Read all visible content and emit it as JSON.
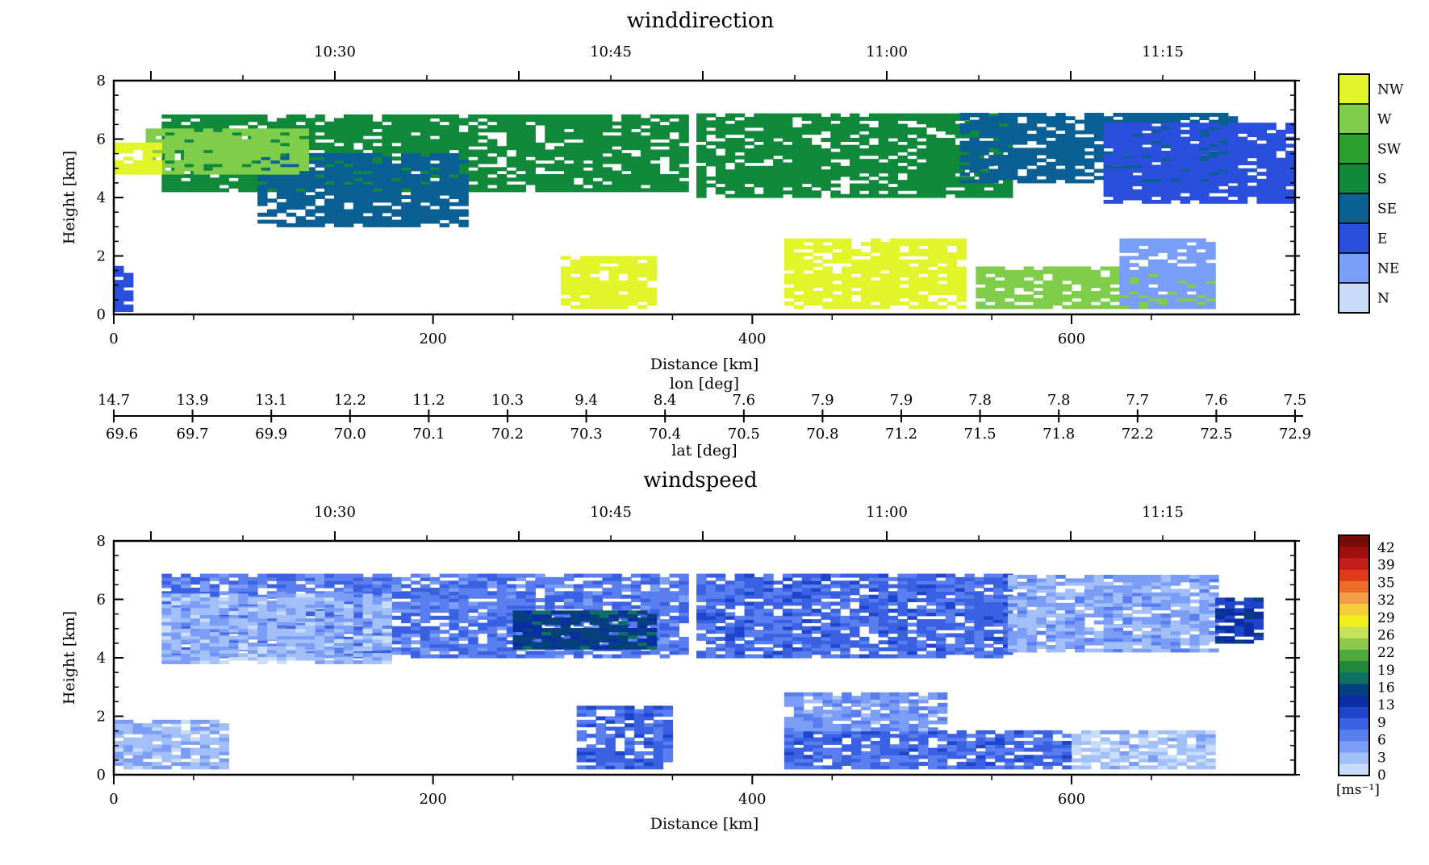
{
  "chart_data": [
    {
      "type": "heatmap",
      "title": "winddirection",
      "xlabel": "Distance [km]",
      "ylabel": "Height [km]",
      "xlim": [
        0,
        740
      ],
      "ylim": [
        0,
        8
      ],
      "x_ticks": [
        0,
        200,
        400,
        600
      ],
      "y_ticks": [
        0,
        2,
        4,
        6,
        8
      ],
      "top_axis_time_labels": [
        "10:30",
        "10:45",
        "11:00",
        "11:15"
      ],
      "legend": {
        "position": "right",
        "categories": [
          "NW",
          "W",
          "SW",
          "S",
          "SE",
          "E",
          "NE",
          "N"
        ],
        "colors": [
          "#e2f52a",
          "#7fcd4b",
          "#2ca02c",
          "#11893b",
          "#0a5f94",
          "#2a4fdd",
          "#799ef8",
          "#c7dcf9"
        ]
      },
      "regions": [
        {
          "category": "S",
          "x": [
            30,
            355
          ],
          "y": [
            4.2,
            6.8
          ]
        },
        {
          "category": "S",
          "x": [
            365,
            560
          ],
          "y": [
            4.0,
            6.8
          ]
        },
        {
          "category": "SE",
          "x": [
            530,
            700
          ],
          "y": [
            4.5,
            6.8
          ]
        },
        {
          "category": "E",
          "x": [
            620,
            740
          ],
          "y": [
            3.8,
            6.5
          ]
        },
        {
          "category": "SE",
          "x": [
            90,
            220
          ],
          "y": [
            3.0,
            5.5
          ]
        },
        {
          "category": "W",
          "x": [
            20,
            120
          ],
          "y": [
            4.8,
            6.3
          ]
        },
        {
          "category": "NW",
          "x": [
            0,
            30
          ],
          "y": [
            4.8,
            5.8
          ]
        },
        {
          "category": "NW",
          "x": [
            420,
            530
          ],
          "y": [
            0.2,
            2.6
          ]
        },
        {
          "category": "W",
          "x": [
            540,
            690
          ],
          "y": [
            0.2,
            1.6
          ]
        },
        {
          "category": "NW",
          "x": [
            280,
            340
          ],
          "y": [
            0.2,
            2.0
          ]
        },
        {
          "category": "NE",
          "x": [
            630,
            690
          ],
          "y": [
            0.2,
            2.5
          ]
        },
        {
          "category": "E",
          "x": [
            0,
            10
          ],
          "y": [
            0.1,
            1.6
          ]
        }
      ]
    },
    {
      "type": "heatmap",
      "title": "windspeed",
      "xlabel": "Distance [km]",
      "ylabel": "Height [km]",
      "xlim": [
        0,
        740
      ],
      "ylim": [
        0,
        8
      ],
      "x_ticks": [
        0,
        200,
        400,
        600
      ],
      "y_ticks": [
        0,
        2,
        4,
        6,
        8
      ],
      "top_axis_time_labels": [
        "10:30",
        "10:45",
        "11:00",
        "11:15"
      ],
      "colorbar": {
        "position": "right",
        "unit": "[ms⁻¹]",
        "ticks": [
          "42",
          "39",
          "35",
          "32",
          "29",
          "26",
          "22",
          "19",
          "16",
          "13",
          "9",
          "6",
          "3",
          "0"
        ],
        "colors": [
          "#7a0a0a",
          "#9e1010",
          "#c41d1d",
          "#e03a1a",
          "#ef6b2a",
          "#f59e4a",
          "#f6cc3a",
          "#f2f01c",
          "#c4e35a",
          "#8cc84b",
          "#4ea83b",
          "#20883a",
          "#0e6f62",
          "#06407e",
          "#0b2fa2",
          "#1f45cc",
          "#3a61e2",
          "#5a7ef0",
          "#7b9df5",
          "#a3bff8",
          "#c8dcfb"
        ]
      },
      "regions": [
        {
          "speed": 7,
          "x": [
            30,
            355
          ],
          "y": [
            4.0,
            6.8
          ]
        },
        {
          "speed": 14,
          "x": [
            250,
            340
          ],
          "y": [
            4.3,
            5.6
          ]
        },
        {
          "speed": 3,
          "x": [
            30,
            170
          ],
          "y": [
            3.8,
            6.2
          ]
        },
        {
          "speed": 8,
          "x": [
            365,
            560
          ],
          "y": [
            4.0,
            6.8
          ]
        },
        {
          "speed": 4,
          "x": [
            560,
            690
          ],
          "y": [
            4.2,
            6.8
          ]
        },
        {
          "speed": 12,
          "x": [
            690,
            720
          ],
          "y": [
            4.5,
            6.0
          ]
        },
        {
          "speed": 8,
          "x": [
            420,
            600
          ],
          "y": [
            0.2,
            1.5
          ]
        },
        {
          "speed": 2,
          "x": [
            600,
            690
          ],
          "y": [
            0.2,
            1.5
          ]
        },
        {
          "speed": 5,
          "x": [
            420,
            520
          ],
          "y": [
            1.5,
            2.8
          ]
        },
        {
          "speed": 8,
          "x": [
            290,
            350
          ],
          "y": [
            0.2,
            2.3
          ]
        },
        {
          "speed": 3,
          "x": [
            0,
            70
          ],
          "y": [
            0.2,
            1.8
          ]
        }
      ]
    }
  ],
  "coordinate_axis": {
    "lon_label": "lon [deg]",
    "lat_label": "lat [deg]",
    "lon_ticks": [
      "14.7",
      "13.9",
      "13.1",
      "12.2",
      "11.2",
      "10.3",
      "9.4",
      "8.4",
      "7.6",
      "7.9",
      "7.9",
      "7.8",
      "7.8",
      "7.7",
      "7.6",
      "7.5"
    ],
    "lat_ticks": [
      "69.6",
      "69.7",
      "69.9",
      "70.0",
      "70.1",
      "70.2",
      "70.3",
      "70.4",
      "70.5",
      "70.8",
      "71.2",
      "71.5",
      "71.8",
      "72.2",
      "72.5",
      "72.9"
    ]
  }
}
